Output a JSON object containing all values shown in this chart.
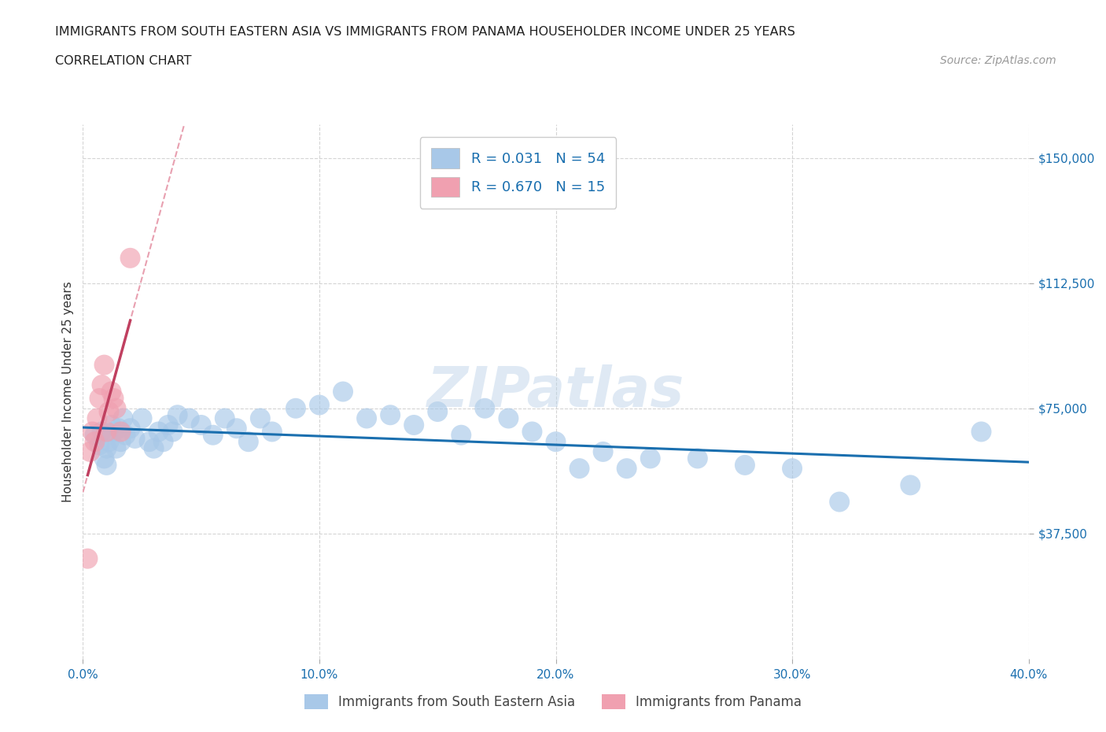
{
  "title": "IMMIGRANTS FROM SOUTH EASTERN ASIA VS IMMIGRANTS FROM PANAMA HOUSEHOLDER INCOME UNDER 25 YEARS",
  "subtitle": "CORRELATION CHART",
  "source": "Source: ZipAtlas.com",
  "ylabel": "Householder Income Under 25 years",
  "x_min": 0.0,
  "x_max": 0.4,
  "y_min": 0,
  "y_max": 160000,
  "y_ticks": [
    37500,
    75000,
    112500,
    150000
  ],
  "y_tick_labels": [
    "$37,500",
    "$75,000",
    "$112,500",
    "$150,000"
  ],
  "x_tick_labels": [
    "0.0%",
    "10.0%",
    "20.0%",
    "30.0%",
    "40.0%"
  ],
  "x_ticks": [
    0.0,
    0.1,
    0.2,
    0.3,
    0.4
  ],
  "legend_entries": [
    {
      "label": "Immigrants from South Eastern Asia",
      "color": "#a8c8e8"
    },
    {
      "label": "Immigrants from Panama",
      "color": "#f0a0b0"
    }
  ],
  "R_blue": 0.031,
  "N_blue": 54,
  "R_pink": 0.67,
  "N_pink": 15,
  "blue_scatter_x": [
    0.005,
    0.007,
    0.008,
    0.009,
    0.01,
    0.01,
    0.011,
    0.012,
    0.013,
    0.014,
    0.015,
    0.016,
    0.017,
    0.018,
    0.02,
    0.022,
    0.025,
    0.028,
    0.03,
    0.032,
    0.034,
    0.036,
    0.038,
    0.04,
    0.045,
    0.05,
    0.055,
    0.06,
    0.065,
    0.07,
    0.075,
    0.08,
    0.09,
    0.1,
    0.11,
    0.12,
    0.13,
    0.14,
    0.15,
    0.16,
    0.17,
    0.18,
    0.19,
    0.2,
    0.21,
    0.22,
    0.23,
    0.24,
    0.26,
    0.28,
    0.3,
    0.32,
    0.35,
    0.38
  ],
  "blue_scatter_y": [
    67000,
    64000,
    68000,
    60000,
    63000,
    58000,
    65000,
    70000,
    68000,
    63000,
    69000,
    65000,
    72000,
    67000,
    69000,
    66000,
    72000,
    65000,
    63000,
    68000,
    65000,
    70000,
    68000,
    73000,
    72000,
    70000,
    67000,
    72000,
    69000,
    65000,
    72000,
    68000,
    75000,
    76000,
    80000,
    72000,
    73000,
    70000,
    74000,
    67000,
    75000,
    72000,
    68000,
    65000,
    57000,
    62000,
    57000,
    60000,
    60000,
    58000,
    57000,
    47000,
    52000,
    68000
  ],
  "pink_scatter_x": [
    0.002,
    0.003,
    0.004,
    0.005,
    0.006,
    0.007,
    0.008,
    0.009,
    0.01,
    0.011,
    0.012,
    0.013,
    0.014,
    0.016,
    0.02
  ],
  "pink_scatter_y": [
    30000,
    62000,
    68000,
    65000,
    72000,
    78000,
    82000,
    88000,
    68000,
    74000,
    80000,
    78000,
    75000,
    68000,
    120000
  ],
  "blue_line_color": "#1a6faf",
  "pink_line_color": "#c04060",
  "pink_dash_color": "#e8a0b0",
  "grid_color": "#d0d0d0",
  "background_color": "#ffffff",
  "watermark": "ZIPatlas"
}
